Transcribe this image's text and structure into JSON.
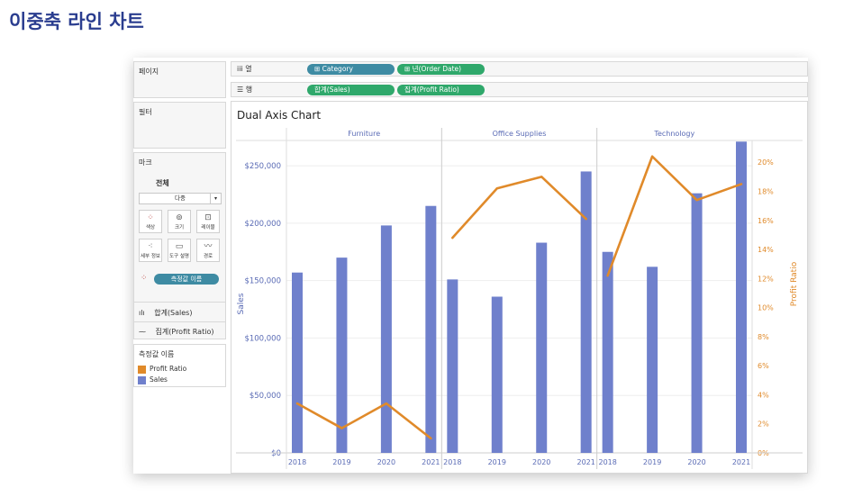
{
  "slide_title": "이중축 라인 차트",
  "pages_panel": {
    "title": "페이지"
  },
  "filters_panel": {
    "title": "필터"
  },
  "marks_panel": {
    "title": "마크",
    "all_label": "전체",
    "mark_type": "다중",
    "buttons": [
      {
        "label": "색상",
        "icon": "color-icon"
      },
      {
        "label": "크기",
        "icon": "size-icon"
      },
      {
        "label": "레이블",
        "icon": "label-icon"
      },
      {
        "label": "세부 정보",
        "icon": "detail-icon"
      },
      {
        "label": "도구 설명",
        "icon": "tooltip-icon"
      },
      {
        "label": "경로",
        "icon": "path-icon"
      }
    ],
    "measure_names_pill": "측정값 이름",
    "rows": [
      {
        "label": "합계(Sales)",
        "icon": "bar-icon"
      },
      {
        "label": "집계(Profit Ratio)",
        "icon": "line-icon"
      }
    ]
  },
  "legend": {
    "title": "측정값 이름",
    "items": [
      {
        "label": "Profit Ratio",
        "color": "#e08a2a"
      },
      {
        "label": "Sales",
        "color": "#6f80cc"
      }
    ]
  },
  "shelves": {
    "columns": {
      "label": "열",
      "pills": [
        "⊞ Category",
        "⊞ 년(Order Date)"
      ]
    },
    "rows": {
      "label": "행",
      "pills": [
        "합계(Sales)",
        "집계(Profit Ratio)"
      ]
    }
  },
  "view": {
    "title": "Dual Axis Chart"
  },
  "chart_data": {
    "type": "bar",
    "title": "Dual Axis Chart",
    "panes": [
      "Furniture",
      "Office Supplies",
      "Technology"
    ],
    "categories": [
      "2018",
      "2019",
      "2020",
      "2021"
    ],
    "ylabel": "Sales",
    "y2label": "Profit Ratio",
    "ylim": [
      0,
      272000
    ],
    "y2lim": [
      0,
      0.215
    ],
    "yticks": [
      "$0",
      "$50,000",
      "$100,000",
      "$150,000",
      "$200,000",
      "$250,000"
    ],
    "y2ticks": [
      "0%",
      "2%",
      "4%",
      "6%",
      "8%",
      "10%",
      "12%",
      "14%",
      "16%",
      "18%",
      "20%"
    ],
    "series": [
      {
        "name": "Sales",
        "type": "bar",
        "color": "#6f80cc",
        "values": [
          [
            157000,
            170000,
            198000,
            215000
          ],
          [
            151000,
            136000,
            183000,
            245000
          ],
          [
            175000,
            162000,
            226000,
            271000
          ]
        ]
      },
      {
        "name": "Profit Ratio",
        "type": "line",
        "color": "#e08a2a",
        "values": [
          [
            0.034,
            0.017,
            0.034,
            0.01
          ],
          [
            0.148,
            0.182,
            0.19,
            0.161
          ],
          [
            0.122,
            0.204,
            0.174,
            0.185
          ]
        ]
      }
    ]
  }
}
